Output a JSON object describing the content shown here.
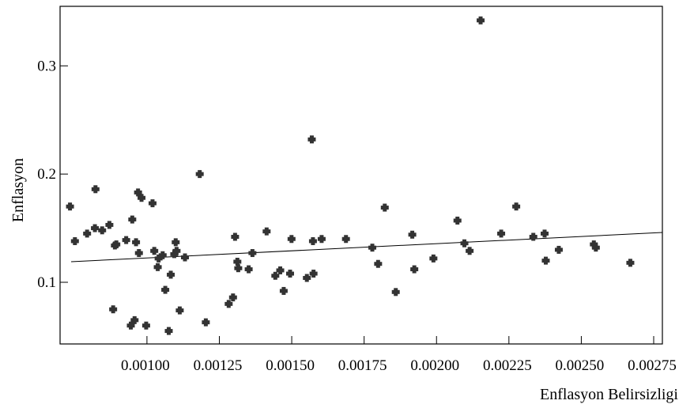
{
  "chart_data": {
    "type": "scatter",
    "xlabel": "Enflasyon Belirsizligi",
    "ylabel": "Enflasyon",
    "xlim": [
      0.0007,
      0.00278
    ],
    "ylim": [
      0.043,
      0.355
    ],
    "x_ticks": [
      0.001,
      0.00125,
      0.0015,
      0.00175,
      0.002,
      0.00225,
      0.0025,
      0.00275
    ],
    "x_tick_labels": [
      "0.00100",
      "0.00125",
      "0.00150",
      "0.00175",
      "0.00200",
      "0.00225",
      "0.00250",
      "0.00275"
    ],
    "y_ticks": [
      0.1,
      0.2,
      0.3
    ],
    "y_tick_labels": [
      "0.1",
      "0.2",
      "0.3"
    ],
    "grid": false,
    "marker_color": "#333333",
    "series": [
      {
        "x": [
          0.000707,
          0.000724,
          0.000766,
          0.000793,
          0.000795,
          0.000818,
          0.000843,
          0.000856,
          0.000862,
          0.000867,
          0.000901,
          0.000917,
          0.000922,
          0.00093,
          0.000935,
          0.000942,
          0.000945,
          0.000954,
          0.00097,
          0.000992,
          0.000998,
          0.00101,
          0.001013,
          0.001027,
          0.001036,
          0.001048,
          0.001055,
          0.001067,
          0.001072,
          0.001075,
          0.001086,
          0.001104,
          0.001155,
          0.001176,
          0.001255,
          0.00127,
          0.001277,
          0.001285,
          0.001288,
          0.001324,
          0.001337,
          0.001386,
          0.001416,
          0.001433,
          0.001445,
          0.001467,
          0.001472,
          0.001525,
          0.001542,
          0.001546,
          0.001548,
          0.001576,
          0.00166,
          0.001751,
          0.001771,
          0.001794,
          0.001832,
          0.001889,
          0.001896,
          0.001962,
          0.002045,
          0.002069,
          0.002087,
          0.002125,
          0.002196,
          0.002248,
          0.002307,
          0.002346,
          0.00235,
          0.002395,
          0.002516,
          0.002523,
          0.002642
        ],
        "y": [
          0.17,
          0.138,
          0.145,
          0.15,
          0.186,
          0.148,
          0.153,
          0.075,
          0.134,
          0.135,
          0.139,
          0.06,
          0.158,
          0.065,
          0.137,
          0.183,
          0.127,
          0.178,
          0.06,
          0.173,
          0.129,
          0.114,
          0.122,
          0.125,
          0.093,
          0.055,
          0.107,
          0.126,
          0.137,
          0.129,
          0.074,
          0.123,
          0.2,
          0.063,
          0.08,
          0.086,
          0.142,
          0.119,
          0.113,
          0.112,
          0.127,
          0.147,
          0.106,
          0.111,
          0.092,
          0.108,
          0.14,
          0.104,
          0.232,
          0.138,
          0.108,
          0.14,
          0.14,
          0.132,
          0.117,
          0.169,
          0.091,
          0.144,
          0.112,
          0.122,
          0.157,
          0.136,
          0.129,
          0.342,
          0.145,
          0.17,
          0.142,
          0.145,
          0.12,
          0.13,
          0.135,
          0.132,
          0.118
        ]
      }
    ],
    "fit_line": {
      "x": [
        0.0007,
        0.00278
      ],
      "y": [
        0.119,
        0.146
      ]
    }
  }
}
